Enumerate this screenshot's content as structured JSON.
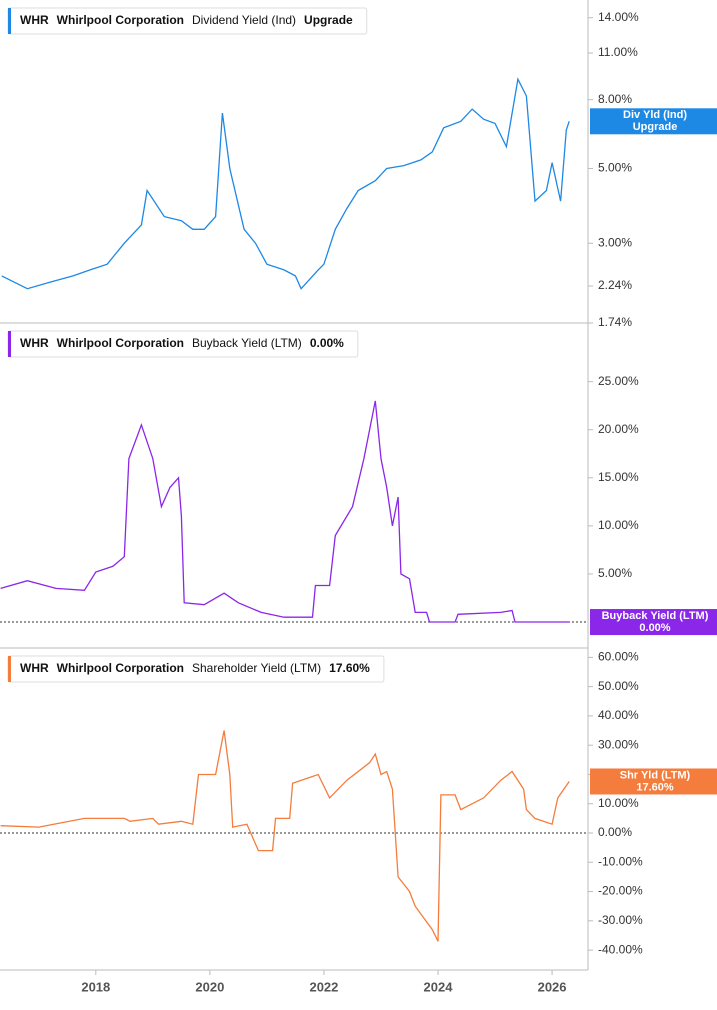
{
  "chart_data": [
    {
      "type": "line",
      "ticker": "WHR",
      "company": "Whirlpool Corporation",
      "current_label": "Upgrade",
      "flag_label": "Div Yld (Ind)",
      "flag_value": "Upgrade",
      "log_scale": true,
      "x": [
        2016.35,
        2016.8,
        2017.2,
        2017.6,
        2017.9,
        2018.2,
        2018.5,
        2018.8,
        2018.9,
        2019.2,
        2019.5,
        2019.7,
        2019.9,
        2020.1,
        2020.22,
        2020.35,
        2020.6,
        2020.8,
        2021.0,
        2021.3,
        2021.5,
        2021.6,
        2021.9,
        2022.0,
        2022.2,
        2022.4,
        2022.6,
        2022.9,
        2023.1,
        2023.4,
        2023.7,
        2023.9,
        2024.1,
        2024.4,
        2024.6,
        2024.8,
        2025.0,
        2025.2,
        2025.4,
        2025.55,
        2025.7,
        2025.9,
        2026.0,
        2026.15,
        2026.25,
        2026.3
      ],
      "series": [
        {
          "name": "Dividend Yield (Ind)",
          "color": "#1e88e5",
          "values": [
            2.4,
            2.2,
            2.3,
            2.4,
            2.5,
            2.6,
            3.0,
            3.4,
            4.3,
            3.6,
            3.5,
            3.3,
            3.3,
            3.6,
            7.3,
            5.0,
            3.3,
            3.0,
            2.6,
            2.5,
            2.4,
            2.2,
            2.5,
            2.6,
            3.3,
            3.8,
            4.3,
            4.6,
            5.0,
            5.1,
            5.3,
            5.6,
            6.6,
            6.9,
            7.5,
            7.0,
            6.8,
            5.8,
            9.2,
            8.2,
            4.0,
            4.3,
            5.2,
            4.0,
            6.5,
            6.9
          ]
        }
      ],
      "xlim": [
        2016.32,
        2026.63
      ],
      "ylim": [
        1.74,
        15.8
      ],
      "yticks": [
        {
          "value": 14,
          "label": "14.00%"
        },
        {
          "value": 11,
          "label": "11.00%"
        },
        {
          "value": 8,
          "label": "8.00%"
        },
        {
          "value": 5,
          "label": "5.00%"
        },
        {
          "value": 3,
          "label": "3.00%"
        },
        {
          "value": 2.24,
          "label": "2.24%"
        },
        {
          "value": 1.74,
          "label": "1.74%"
        }
      ]
    },
    {
      "type": "line",
      "ticker": "WHR",
      "company": "Whirlpool Corporation",
      "current_label": "0.00%",
      "flag_label": "Buyback Yield (LTM)",
      "flag_value": "0.00%",
      "hline": 0,
      "x": [
        2016.33,
        2016.8,
        2017.3,
        2017.8,
        2018.0,
        2018.3,
        2018.5,
        2018.58,
        2018.8,
        2019.0,
        2019.15,
        2019.3,
        2019.45,
        2019.5,
        2019.55,
        2019.9,
        2020.25,
        2020.5,
        2020.9,
        2021.3,
        2021.8,
        2021.85,
        2022.1,
        2022.2,
        2022.5,
        2022.7,
        2022.9,
        2023.0,
        2023.1,
        2023.2,
        2023.3,
        2023.35,
        2023.5,
        2023.6,
        2023.8,
        2023.85,
        2024.3,
        2024.35,
        2025.1,
        2025.3,
        2025.35,
        2026.3
      ],
      "series": [
        {
          "name": "Buyback Yield (LTM)",
          "color": "#8b27e8",
          "values": [
            3.5,
            4.3,
            3.5,
            3.3,
            5.2,
            5.8,
            6.8,
            17,
            20.5,
            17,
            12,
            14,
            15,
            11,
            2,
            1.8,
            3,
            2,
            1,
            0.5,
            0.5,
            3.8,
            3.8,
            9,
            12,
            17,
            23,
            17,
            14,
            10,
            13,
            5,
            4.5,
            1,
            1,
            0,
            0,
            0.8,
            1,
            1.2,
            0,
            0
          ]
        }
      ],
      "xlim": [
        2016.32,
        2026.63
      ],
      "ylim": [
        -2.7,
        31.1
      ],
      "yticks": [
        {
          "value": 25,
          "label": "25.00%"
        },
        {
          "value": 20,
          "label": "20.00%"
        },
        {
          "value": 15,
          "label": "15.00%"
        },
        {
          "value": 10,
          "label": "10.00%"
        },
        {
          "value": 5,
          "label": "5.00%"
        }
      ]
    },
    {
      "type": "line",
      "ticker": "WHR",
      "company": "Whirlpool Corporation",
      "current_label": "17.60%",
      "flag_label": "Shr Yld (LTM)",
      "flag_value": "17.60%",
      "hline": 0,
      "x": [
        2016.33,
        2017.0,
        2017.8,
        2018.5,
        2018.6,
        2019.0,
        2019.1,
        2019.5,
        2019.7,
        2019.8,
        2020.1,
        2020.25,
        2020.35,
        2020.4,
        2020.65,
        2020.85,
        2021.1,
        2021.15,
        2021.4,
        2021.45,
        2021.9,
        2022.1,
        2022.4,
        2022.8,
        2022.9,
        2023.0,
        2023.1,
        2023.2,
        2023.3,
        2023.5,
        2023.6,
        2023.9,
        2024.0,
        2024.05,
        2024.3,
        2024.4,
        2024.8,
        2025.1,
        2025.3,
        2025.5,
        2025.55,
        2025.7,
        2026.0,
        2026.1,
        2026.3
      ],
      "series": [
        {
          "name": "Shareholder Yield (LTM)",
          "color": "#f47c3c",
          "values": [
            2.5,
            2,
            5,
            5,
            4,
            5,
            3,
            4,
            3,
            20,
            20,
            35,
            20,
            2,
            3,
            -6,
            -6,
            5,
            5,
            17,
            20,
            12,
            18,
            24,
            27,
            20,
            21,
            15,
            -15,
            -20,
            -25,
            -33,
            -37,
            13,
            13,
            8,
            12,
            18,
            21,
            15,
            8,
            5,
            3,
            12,
            17.6
          ]
        }
      ],
      "xlim": [
        2016.32,
        2026.63
      ],
      "ylim": [
        -46.8,
        63.2
      ],
      "yticks": [
        {
          "value": 60,
          "label": "60.00%"
        },
        {
          "value": 50,
          "label": "50.00%"
        },
        {
          "value": 40,
          "label": "40.00%"
        },
        {
          "value": 30,
          "label": "30.00%"
        },
        {
          "value": 20,
          "label": "20.00%"
        },
        {
          "value": 10,
          "label": "10.00%"
        },
        {
          "value": 0,
          "label": "0.00%"
        },
        {
          "value": -10,
          "label": "-10.00%"
        },
        {
          "value": -20,
          "label": "-20.00%"
        },
        {
          "value": -30,
          "label": "-30.00%"
        },
        {
          "value": -40,
          "label": "-40.00%"
        }
      ],
      "xticks": [
        2018,
        2020,
        2022,
        2024,
        2026
      ]
    }
  ]
}
